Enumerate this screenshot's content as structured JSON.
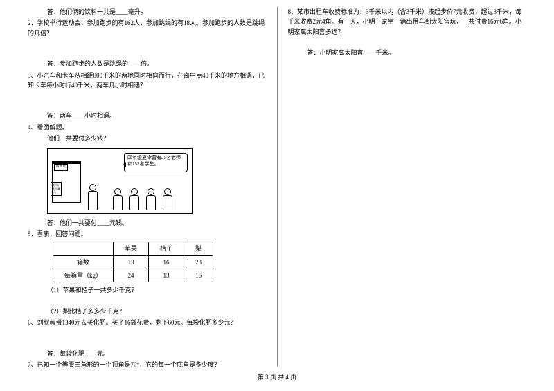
{
  "left": {
    "q1_ans": "答：他们俩的饮料一共是____毫升。",
    "q2": "2、学校举行运动会，参加跑步的有162人，参加跳绳的有18人。参加跑步的人数是跳绳的几倍？",
    "q2_ans": "答：参加跑步的人数是跳绳的____倍。",
    "q3": "3、小汽车和卡车从相距800千米的两地同时相向而行，在离中点40千米的地方相遇，已知卡车每小时行40千米，两车几小时相遇？",
    "q3_ans": "答：两车____小时相遇。",
    "q4": "4、看图解题。",
    "q4_sub": "他们一共要付多少钱？",
    "booth_sign": "售票处",
    "sign_left": "成人6元儿童4元",
    "speech": "四年级夏令营有25名老师和152名学生。",
    "q4_ans": "答：他们一共要付____元钱。",
    "q5": "5、看表，回答问题。",
    "table": {
      "headers": [
        "",
        "苹果",
        "桔子",
        "梨"
      ],
      "rows": [
        [
          "箱数",
          "13",
          "16",
          "23"
        ],
        [
          "每箱重（kg）",
          "24",
          "13",
          "16"
        ]
      ]
    },
    "q5_1": "（1）苹果和桔子一共多少千克？",
    "q5_2": "（2）梨比桔子多多少千克？",
    "q6": "6、刘叔叔带1340元去买化肥。买了16袋花费，剩下60元。每袋化肥多少元？",
    "q6_ans": "答：每袋化肥____元。",
    "q7": "7、已知一个等腰三角形的一个顶角是70°，它的每一个底角是多少度？"
  },
  "right": {
    "q8": "8、某市出租车收费标准为：3千米以内（含3千米）按起步价7元收费，超过3千米，每千米收费2元4角。有一天，小明一家坐一辆出租车到太阳宫玩，一共付费16元6角。小明家离太阳宫多远？",
    "q8_ans": "答：小明家离太阳宫____千米。"
  },
  "footer": "第 3 页 共 4 页"
}
